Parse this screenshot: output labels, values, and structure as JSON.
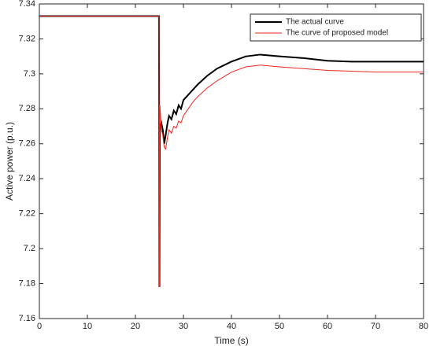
{
  "chart_data": {
    "type": "line",
    "xlabel": "Time (s)",
    "ylabel": "Active power (p.u.)",
    "x": [
      0,
      24.9,
      25,
      25.1,
      25.4,
      25.7,
      26,
      26.3,
      26.7,
      27,
      27.5,
      28,
      28.5,
      29,
      29.5,
      30,
      31,
      32,
      33,
      35,
      37,
      40,
      43,
      46,
      50,
      55,
      60,
      65,
      70,
      75,
      80
    ],
    "series": [
      {
        "name": "The actual curve",
        "color": "#000000",
        "width": 2,
        "values": [
          7.333,
          7.333,
          7.178,
          7.27,
          7.272,
          7.268,
          7.26,
          7.265,
          7.272,
          7.276,
          7.274,
          7.279,
          7.277,
          7.282,
          7.28,
          7.285,
          7.288,
          7.291,
          7.294,
          7.299,
          7.303,
          7.307,
          7.31,
          7.311,
          7.31,
          7.309,
          7.3075,
          7.307,
          7.307,
          7.307,
          7.307
        ]
      },
      {
        "name": "The curve of proposed model",
        "color": "#e8281e",
        "width": 1,
        "values": [
          7.333,
          7.333,
          7.178,
          7.282,
          7.268,
          7.265,
          7.258,
          7.257,
          7.264,
          7.268,
          7.266,
          7.27,
          7.269,
          7.273,
          7.272,
          7.276,
          7.28,
          7.284,
          7.287,
          7.292,
          7.296,
          7.301,
          7.304,
          7.305,
          7.304,
          7.303,
          7.302,
          7.3015,
          7.301,
          7.301,
          7.301
        ]
      }
    ],
    "xlim": [
      0,
      80
    ],
    "xticks": [
      0,
      10,
      20,
      30,
      40,
      50,
      60,
      70,
      80
    ],
    "ylim": [
      7.16,
      7.34
    ],
    "yticks": [
      7.16,
      7.18,
      7.2,
      7.22,
      7.24,
      7.26,
      7.28,
      7.3,
      7.32,
      7.34
    ],
    "legend": "northeast"
  }
}
